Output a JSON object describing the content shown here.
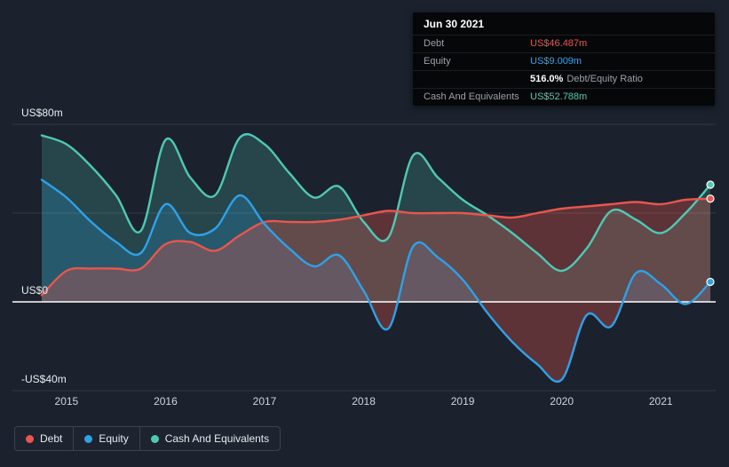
{
  "colors": {
    "background": "#1b222d",
    "debt": "#e8564e",
    "equity": "#2ea1e8",
    "cash": "#4fc9b4",
    "zero_line": "#ffffff",
    "gridline": "rgba(255,255,255,0.10)"
  },
  "tooltip": {
    "date": "Jun 30 2021",
    "debt_label": "Debt",
    "debt_value": "US$46.487m",
    "equity_label": "Equity",
    "equity_value": "US$9.009m",
    "ratio_value": "516.0%",
    "ratio_label": "Debt/Equity Ratio",
    "cash_label": "Cash And Equivalents",
    "cash_value": "US$52.788m"
  },
  "legend": {
    "items": [
      {
        "label": "Debt"
      },
      {
        "label": "Equity"
      },
      {
        "label": "Cash And Equivalents"
      }
    ]
  },
  "chart_data": {
    "type": "area",
    "title": "Debt, Equity and Cash history",
    "x_axis": {
      "ticks": [
        2015,
        2016,
        2017,
        2018,
        2019,
        2020,
        2021
      ],
      "range": [
        2014.75,
        2021.5
      ]
    },
    "y_axis": {
      "unit": "US$m",
      "range": [
        -40,
        80
      ],
      "ticks": [
        {
          "value": 80,
          "label": "US$80m"
        },
        {
          "value": 40,
          "label": ""
        },
        {
          "value": 0,
          "label": "US$0"
        },
        {
          "value": -40,
          "label": "-US$40m"
        }
      ]
    },
    "x": [
      2014.75,
      2015.0,
      2015.25,
      2015.5,
      2015.75,
      2016.0,
      2016.25,
      2016.5,
      2016.75,
      2017.0,
      2017.25,
      2017.5,
      2017.75,
      2018.0,
      2018.25,
      2018.5,
      2018.75,
      2019.0,
      2019.25,
      2019.5,
      2019.75,
      2020.0,
      2020.25,
      2020.5,
      2020.75,
      2021.0,
      2021.25,
      2021.5
    ],
    "series": [
      {
        "name": "Debt",
        "color": "#e8564e",
        "fill": "rgba(232,86,78,0.32)",
        "values": [
          3,
          14,
          15,
          15,
          15,
          26,
          27,
          23,
          30,
          36,
          36,
          36,
          37,
          39,
          41,
          40,
          40,
          40,
          39,
          38,
          40,
          42,
          43,
          44,
          45,
          44,
          46,
          46.487
        ]
      },
      {
        "name": "Equity",
        "color": "#2ea1e8",
        "fill": "rgba(46,161,232,0.22)",
        "fill_below_zero": "rgba(232,86,78,0.32)",
        "values": [
          55,
          47,
          36,
          27,
          22,
          44,
          31,
          33,
          48,
          35,
          24,
          16,
          21,
          5,
          -12,
          25,
          20,
          10,
          -5,
          -18,
          -28,
          -35,
          -6,
          -11,
          13,
          8,
          -1,
          9.009
        ]
      },
      {
        "name": "Cash And Equivalents",
        "color": "#4fc9b4",
        "fill": "rgba(79,201,180,0.22)",
        "values": [
          75,
          71,
          61,
          48,
          32,
          73,
          56,
          48,
          74,
          71,
          58,
          47,
          52,
          36,
          29,
          66,
          56,
          46,
          39,
          31,
          22,
          14,
          24,
          41,
          37,
          31,
          40,
          52.788
        ]
      }
    ],
    "last_point": {
      "date": "Jun 30 2021",
      "debt": 46.487,
      "equity": 9.009,
      "debt_equity_ratio_pct": 516.0,
      "cash_and_equivalents": 52.788
    }
  }
}
